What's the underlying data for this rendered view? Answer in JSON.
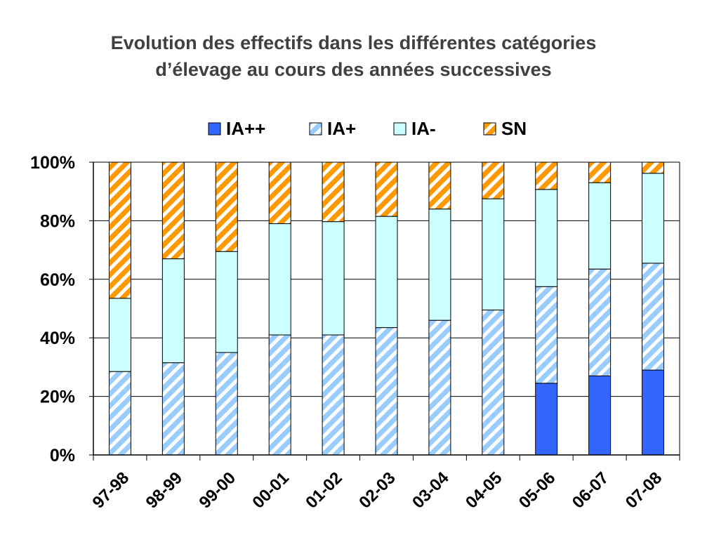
{
  "title_line1": "Evolution des effectifs dans les différentes catégories",
  "title_line2": "d’élevage au cours des années successives",
  "colors": {
    "IA++": "#3366ff",
    "IA+": "#99ccff",
    "IA-": "#ccffff",
    "SN": "#ff9900"
  },
  "chart_data": {
    "type": "bar",
    "stacked": true,
    "percent": true,
    "categories": [
      "97-98",
      "98-99",
      "99-00",
      "00-01",
      "01-02",
      "02-03",
      "03-04",
      "04-05",
      "05-06",
      "06-07",
      "07-08"
    ],
    "series": [
      {
        "name": "IA++",
        "values": [
          0,
          0,
          0,
          0,
          0,
          0,
          0,
          0,
          24.5,
          27,
          29
        ]
      },
      {
        "name": "IA+",
        "values": [
          28.5,
          31.5,
          35,
          41,
          41,
          43.5,
          46,
          49.5,
          33,
          36.5,
          36.5
        ]
      },
      {
        "name": "IA-",
        "values": [
          25,
          35.5,
          34.5,
          38,
          38.7,
          38,
          38,
          38,
          33.2,
          29.5,
          30.7
        ]
      },
      {
        "name": "SN",
        "values": [
          46.5,
          33,
          30.5,
          21,
          20.3,
          18.5,
          16,
          12.5,
          9.3,
          7,
          3.8
        ]
      }
    ],
    "yticks": [
      "0%",
      "20%",
      "40%",
      "60%",
      "80%",
      "100%"
    ],
    "ylim": [
      0,
      100
    ],
    "xlabel": "",
    "ylabel": "",
    "grid": true,
    "legend_position": "top"
  }
}
